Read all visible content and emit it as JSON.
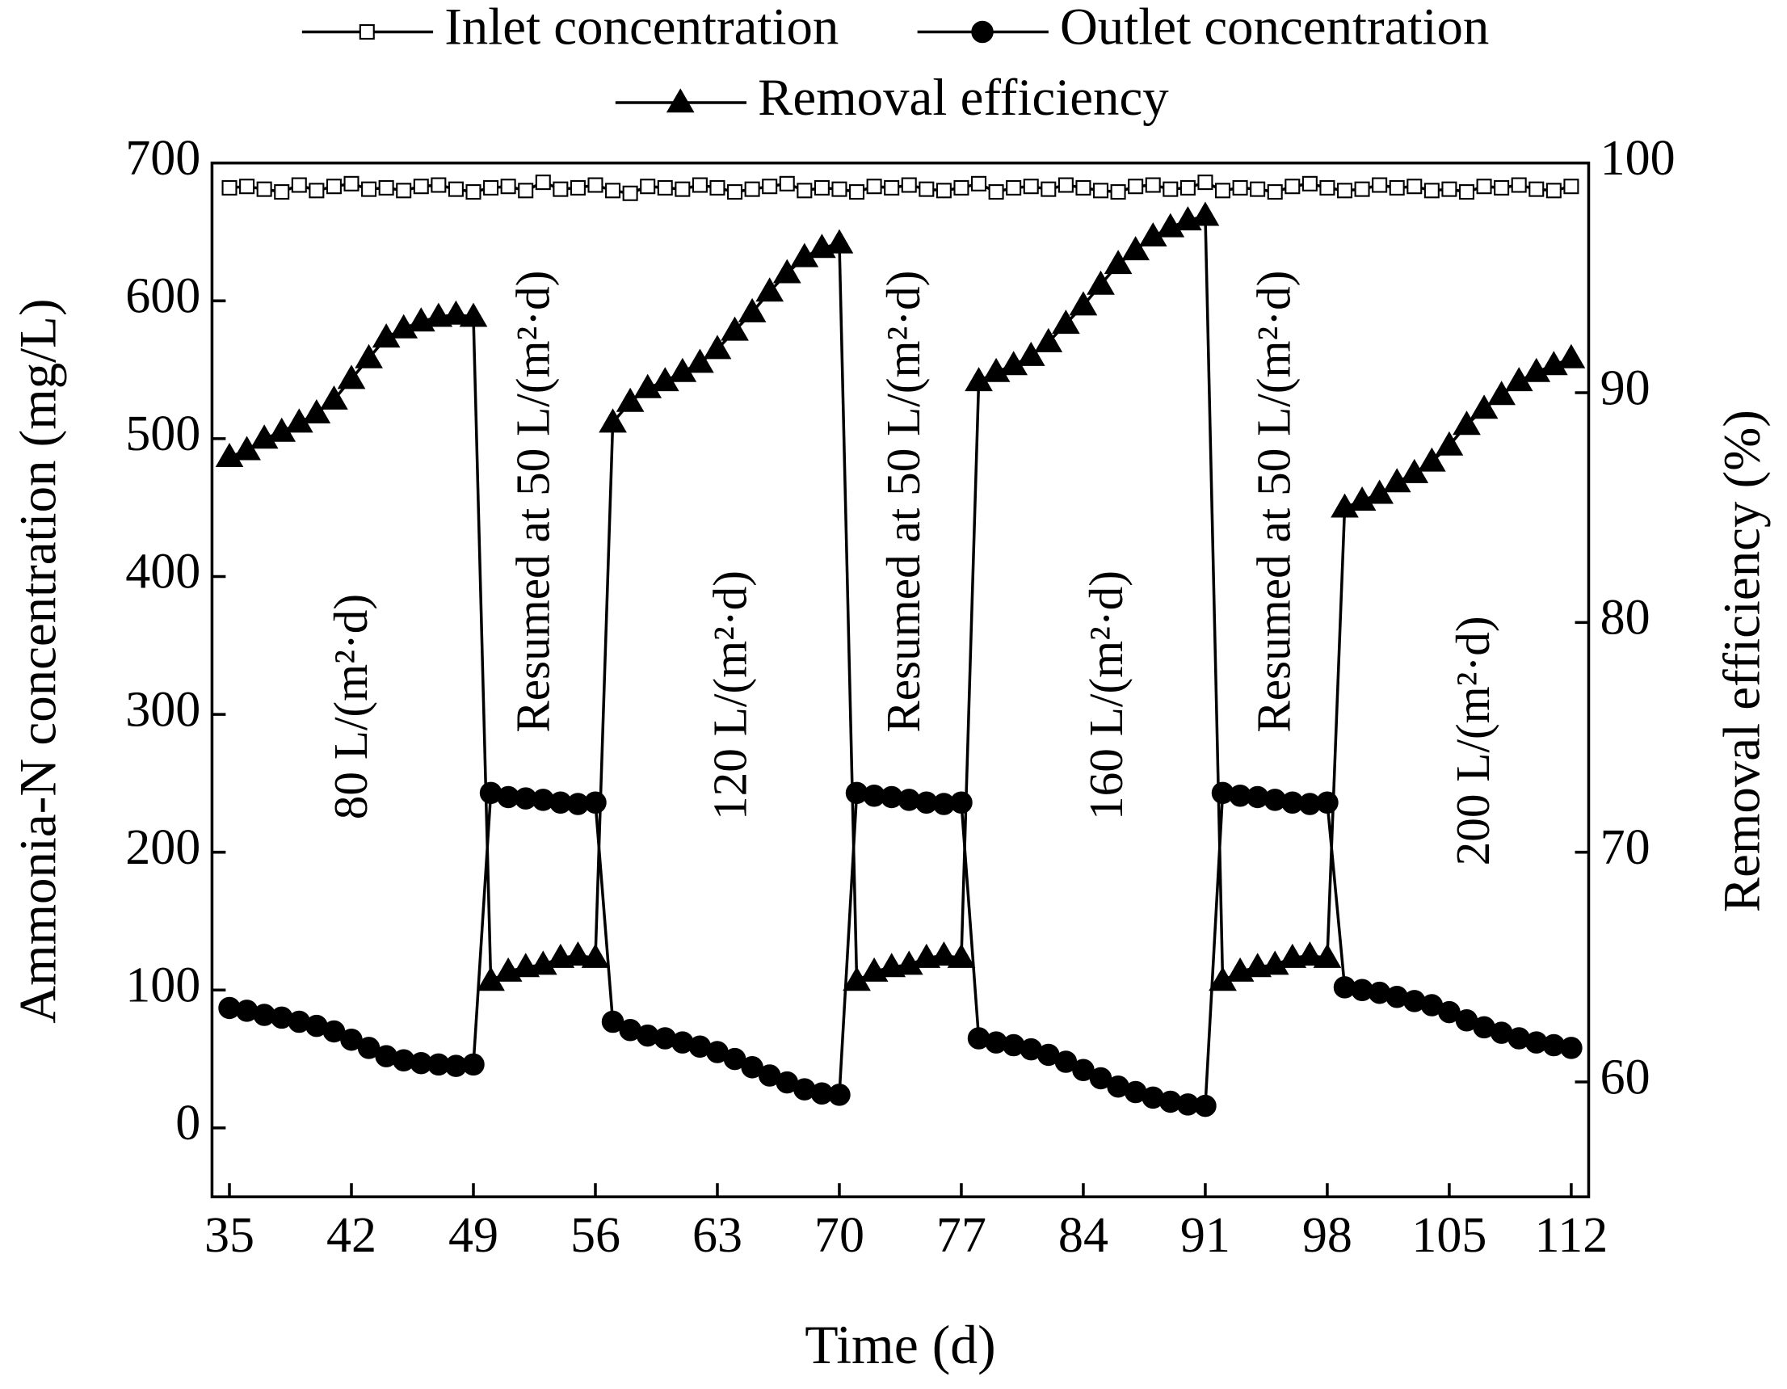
{
  "chart_data": {
    "type": "line",
    "xlabel": "Time (d)",
    "ylabel": "Ammonia-N concentration (mg/L)",
    "y2label": "Removal efficiency (%)",
    "xlim": [
      34,
      113
    ],
    "xticks": [
      35,
      42,
      49,
      56,
      63,
      70,
      77,
      84,
      91,
      98,
      105,
      112
    ],
    "ylim": [
      -50,
      700
    ],
    "yticks": [
      0,
      100,
      200,
      300,
      400,
      500,
      600,
      700
    ],
    "y2lim": [
      55,
      100
    ],
    "y2ticks": [
      60,
      70,
      80,
      90,
      100
    ],
    "x": [
      35,
      36,
      37,
      38,
      39,
      40,
      41,
      42,
      43,
      44,
      45,
      46,
      47,
      48,
      49,
      50,
      51,
      52,
      53,
      54,
      55,
      56,
      57,
      58,
      59,
      60,
      61,
      62,
      63,
      64,
      65,
      66,
      67,
      68,
      69,
      70,
      71,
      72,
      73,
      74,
      75,
      76,
      77,
      78,
      79,
      80,
      81,
      82,
      83,
      84,
      85,
      86,
      87,
      88,
      89,
      90,
      91,
      92,
      93,
      94,
      95,
      96,
      97,
      98,
      99,
      100,
      101,
      102,
      103,
      104,
      105,
      106,
      107,
      108,
      109,
      110,
      111,
      112
    ],
    "series": [
      {
        "name": "Inlet concentration",
        "color": "#000000",
        "marker": "square",
        "axis": "y",
        "values": [
          682,
          683,
          681,
          679,
          684,
          680,
          683,
          685,
          681,
          682,
          680,
          683,
          684,
          681,
          679,
          682,
          683,
          680,
          686,
          681,
          682,
          684,
          680,
          678,
          683,
          682,
          681,
          684,
          682,
          679,
          681,
          683,
          685,
          680,
          682,
          681,
          679,
          683,
          682,
          684,
          681,
          680,
          682,
          685,
          679,
          682,
          683,
          681,
          684,
          682,
          680,
          679,
          683,
          684,
          681,
          682,
          686,
          680,
          682,
          681,
          679,
          683,
          685,
          682,
          680,
          681,
          684,
          682,
          683,
          680,
          681,
          679,
          683,
          682,
          684,
          681,
          680,
          683
        ]
      },
      {
        "name": "Outlet concentration",
        "color": "#000000",
        "marker": "circle",
        "axis": "y",
        "values": [
          87,
          85,
          82,
          80,
          77,
          74,
          70,
          64,
          58,
          52,
          49,
          47,
          46,
          45,
          46,
          243,
          240,
          239,
          238,
          236,
          235,
          236,
          77,
          71,
          67,
          65,
          62,
          59,
          55,
          50,
          44,
          38,
          33,
          28,
          25,
          24,
          243,
          241,
          240,
          238,
          236,
          235,
          236,
          65,
          62,
          60,
          57,
          53,
          48,
          42,
          36,
          30,
          26,
          22,
          19,
          17,
          16,
          243,
          241,
          240,
          238,
          236,
          235,
          236,
          102,
          100,
          98,
          95,
          92,
          89,
          84,
          78,
          73,
          69,
          65,
          62,
          60,
          58
        ]
      },
      {
        "name": "Removal efficiency",
        "color": "#000000",
        "marker": "triangle",
        "axis": "y2",
        "values": [
          87.2,
          87.5,
          88.0,
          88.3,
          88.7,
          89.1,
          89.7,
          90.6,
          91.5,
          92.4,
          92.8,
          93.1,
          93.3,
          93.4,
          93.3,
          64.4,
          64.8,
          65.0,
          65.1,
          65.4,
          65.5,
          65.4,
          88.7,
          89.6,
          90.2,
          90.5,
          90.9,
          91.3,
          91.9,
          92.7,
          93.5,
          94.4,
          95.2,
          95.9,
          96.3,
          96.5,
          64.4,
          64.8,
          65.0,
          65.1,
          65.4,
          65.5,
          65.4,
          90.5,
          90.9,
          91.2,
          91.6,
          92.2,
          93.0,
          93.8,
          94.7,
          95.6,
          96.2,
          96.8,
          97.2,
          97.5,
          97.7,
          64.4,
          64.8,
          65.0,
          65.1,
          65.4,
          65.5,
          65.4,
          85.0,
          85.3,
          85.6,
          86.1,
          86.5,
          87.0,
          87.7,
          88.6,
          89.3,
          89.9,
          90.5,
          90.9,
          91.2,
          91.5
        ]
      }
    ],
    "annotations": [
      "80 L/(m²·d)",
      "Resumed at 50 L/(m²·d)",
      "120 L/(m²·d)",
      "Resumed at 50 L/(m²·d)",
      "160 L/(m²·d)",
      "Resumed at 50 L/(m²·d)",
      "200 L/(m²·d)"
    ]
  }
}
